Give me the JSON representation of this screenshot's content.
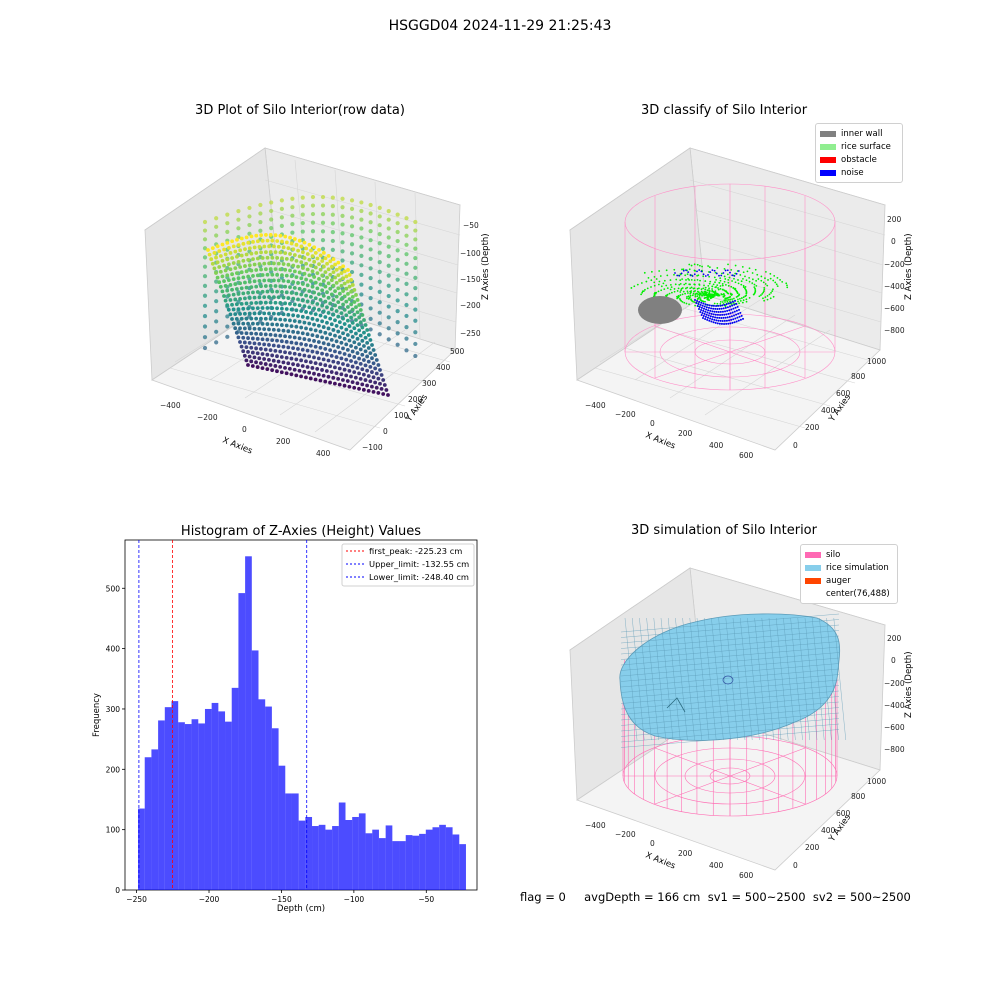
{
  "figure": {
    "suptitle": "HSGGD04 2024-11-29 21:25:43",
    "footer": "flag = 0     avgDepth = 166 cm  sv1 = 500~2500  sv2 = 500~2500"
  },
  "panels": {
    "raw": {
      "title": "3D Plot of Silo Interior(row data)",
      "xlabel": "X Axies",
      "ylabel": "Y Axies",
      "zlabel": "Z Axies (Depth)",
      "xticks": [
        "−400",
        "−200",
        "0",
        "200",
        "400"
      ],
      "yticks": [
        "−100",
        "0",
        "100",
        "200",
        "300",
        "400",
        "500"
      ],
      "zticks": [
        "−50",
        "−100",
        "−150",
        "−200",
        "−250"
      ]
    },
    "classify": {
      "title": "3D classify of Silo Interior",
      "xlabel": "X Axies",
      "ylabel": "Y Axies",
      "zlabel": "Z Axies (Depth)",
      "xticks": [
        "−400",
        "−200",
        "0",
        "200",
        "400",
        "600"
      ],
      "yticks": [
        "0",
        "200",
        "400",
        "600",
        "800",
        "1000"
      ],
      "zticks": [
        "200",
        "0",
        "−200",
        "−400",
        "−600",
        "−800"
      ],
      "legend": [
        {
          "label": "inner wall",
          "color": "#808080"
        },
        {
          "label": "rice surface",
          "color": "#90ee90"
        },
        {
          "label": "obstacle",
          "color": "#ff0000"
        },
        {
          "label": "noise",
          "color": "#0000ff"
        }
      ]
    },
    "simulation": {
      "title": "3D simulation of Silo Interior",
      "xlabel": "X Axies",
      "ylabel": "Y Axies",
      "zlabel": "Z Axies (Depth)",
      "xticks": [
        "−400",
        "−200",
        "0",
        "200",
        "400",
        "600"
      ],
      "yticks": [
        "0",
        "200",
        "400",
        "600",
        "800",
        "1000"
      ],
      "zticks": [
        "200",
        "0",
        "−200",
        "−400",
        "−600",
        "−800"
      ],
      "legend": [
        {
          "label": "silo",
          "color": "#ff69b4"
        },
        {
          "label": "rice simulation",
          "color": "#87ceeb"
        },
        {
          "label": "auger",
          "color": "#ff4500"
        },
        {
          "label": "center(76,488)",
          "color": ""
        }
      ]
    }
  },
  "chart_data": {
    "type": "bar",
    "title": "Histogram of Z-Axies (Height) Values",
    "xlabel": "Depth (cm)",
    "ylabel": "Frequency",
    "bar_color": "#0000ff",
    "xlim": [
      -258,
      -15
    ],
    "ylim": [
      0,
      580
    ],
    "xticks": [
      -250,
      -200,
      -150,
      -100,
      -50
    ],
    "yticks": [
      0,
      100,
      200,
      300,
      400,
      500
    ],
    "bins_start": -249,
    "bin_width": 4.62,
    "values": [
      135,
      220,
      233,
      281,
      303,
      313,
      278,
      275,
      283,
      276,
      300,
      310,
      296,
      279,
      335,
      492,
      553,
      397,
      316,
      304,
      268,
      206,
      160,
      160,
      115,
      121,
      106,
      108,
      100,
      106,
      145,
      116,
      121,
      127,
      94,
      100,
      86,
      107,
      81,
      81,
      91,
      90,
      93,
      100,
      104,
      108,
      104,
      92,
      76
    ],
    "vlines": [
      {
        "label": "first_peak: -225.23 cm",
        "x": -225.23,
        "color": "#ff0000"
      },
      {
        "label": "Upper_limit: -132.55 cm",
        "x": -132.55,
        "color": "#0000ff"
      },
      {
        "label": "Lower_limit: -248.40 cm",
        "x": -248.4,
        "color": "#0000ff"
      }
    ],
    "legend_position": "upper right"
  }
}
